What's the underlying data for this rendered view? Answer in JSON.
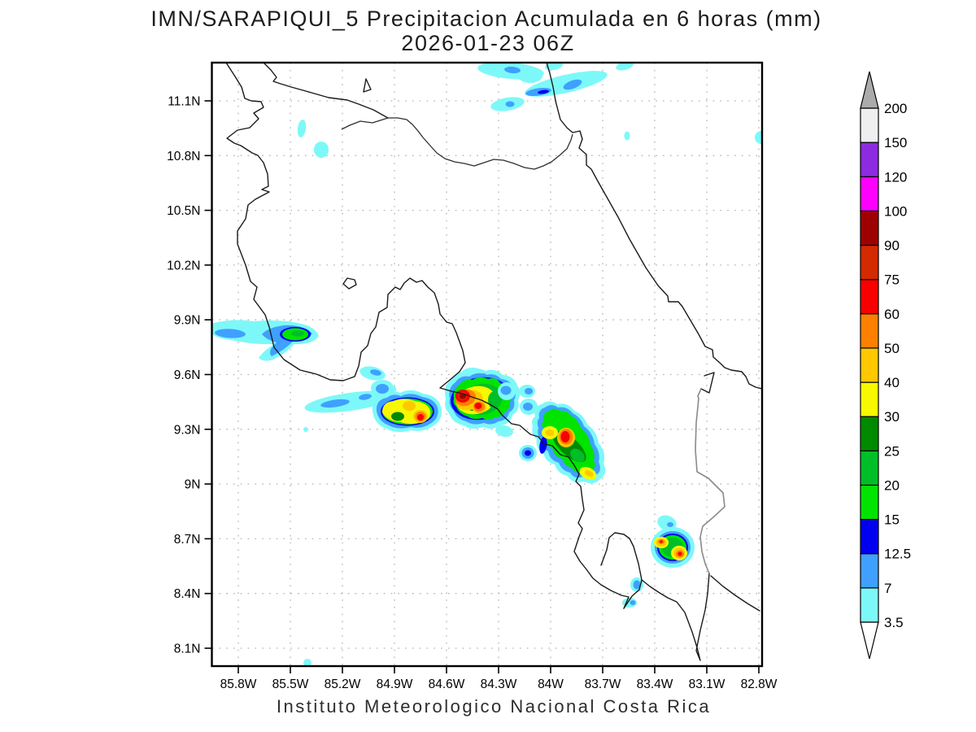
{
  "title": {
    "line1": "IMN/SARAPIQUI_5 Precipitacion Acumulada en 6 horas (mm)",
    "line2": "2026-01-23 06Z"
  },
  "footer": "Instituto Meteorologico Nacional Costa Rica",
  "map": {
    "x_ticks": [
      "85.8W",
      "85.5W",
      "85.2W",
      "84.9W",
      "84.6W",
      "84.3W",
      "84W",
      "83.7W",
      "83.4W",
      "83.1W",
      "82.8W"
    ],
    "y_ticks": [
      "11.1N",
      "10.8N",
      "10.5N",
      "10.2N",
      "9.9N",
      "9.6N",
      "9.3N",
      "9N",
      "8.7N",
      "8.4N",
      "8.1N"
    ],
    "region": "Costa Rica",
    "features": [
      {
        "name": "north-caribbean-streaks",
        "lon": "84.0W",
        "lat": "11.2N",
        "peak_mm": "7-12.5"
      },
      {
        "name": "guanacaste-coast-cell",
        "lon": "85.5W",
        "lat": "9.8N",
        "peak_mm": "20-25"
      },
      {
        "name": "central-pacific-cell-west",
        "lon": "84.8W",
        "lat": "9.4N",
        "peak_mm": "60-75"
      },
      {
        "name": "central-pacific-cell-east",
        "lon": "84.4W",
        "lat": "9.5N",
        "peak_mm": "90-100"
      },
      {
        "name": "south-pacific-chain",
        "lon": "83.9W",
        "lat": "9.3N",
        "peak_mm": "60-75"
      },
      {
        "name": "osa-golfito-cell",
        "lon": "83.2W",
        "lat": "8.6N",
        "peak_mm": "60-75"
      }
    ]
  },
  "palette": {
    "c": "#7DF8F8",
    "b": "#3FA0FF",
    "db": "#0000F0",
    "g": "#00E400",
    "mg": "#00BE28",
    "dg": "#008A00",
    "y": "#F8F800",
    "gd": "#FFC800",
    "o": "#FF8000",
    "r": "#F80000",
    "rb": "#D42A00",
    "dr": "#9E0000",
    "m": "#FF00FF",
    "pu": "#8C2BE0",
    "w": "#EFEFEF"
  },
  "colorbar": {
    "levels_bottom_to_top": [
      "3.5",
      "7",
      "12.5",
      "15",
      "20",
      "25",
      "30",
      "40",
      "50",
      "60",
      "75",
      "90",
      "100",
      "120",
      "150",
      "200"
    ],
    "colors_bottom_to_top": [
      "c",
      "b",
      "db",
      "g",
      "mg",
      "dg",
      "y",
      "gd",
      "o",
      "r",
      "rb",
      "dr",
      "m",
      "pu",
      "w"
    ],
    "above_color": "#ABABAB",
    "below_color": "#FFFFFF"
  }
}
